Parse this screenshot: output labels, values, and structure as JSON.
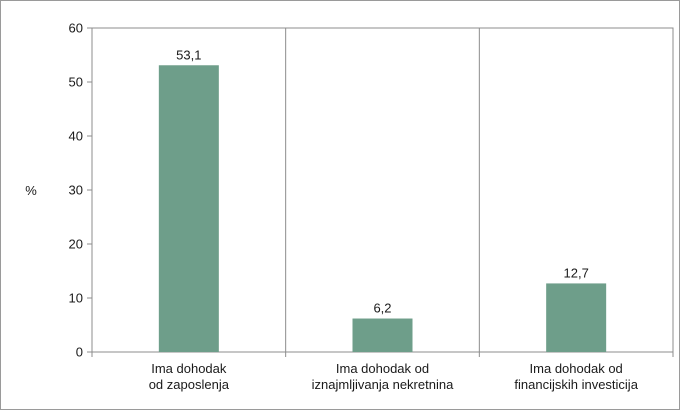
{
  "chart_data": {
    "type": "bar",
    "categories": [
      [
        "Ima dohodak",
        "od zaposlenja"
      ],
      [
        "Ima dohodak od",
        "iznajmljivanja nekretnina"
      ],
      [
        "Ima dohodak od",
        "financijskih investicija"
      ]
    ],
    "values": [
      53.1,
      6.2,
      12.7
    ],
    "value_labels": [
      "53,1",
      "6,2",
      "12,7"
    ],
    "ylabel": "%",
    "ylim": [
      0,
      60
    ],
    "yticks": [
      0,
      10,
      20,
      30,
      40,
      50,
      60
    ],
    "bar_color": "#6e9e8a",
    "grid": "vertical separators between categories",
    "legend": "none"
  }
}
